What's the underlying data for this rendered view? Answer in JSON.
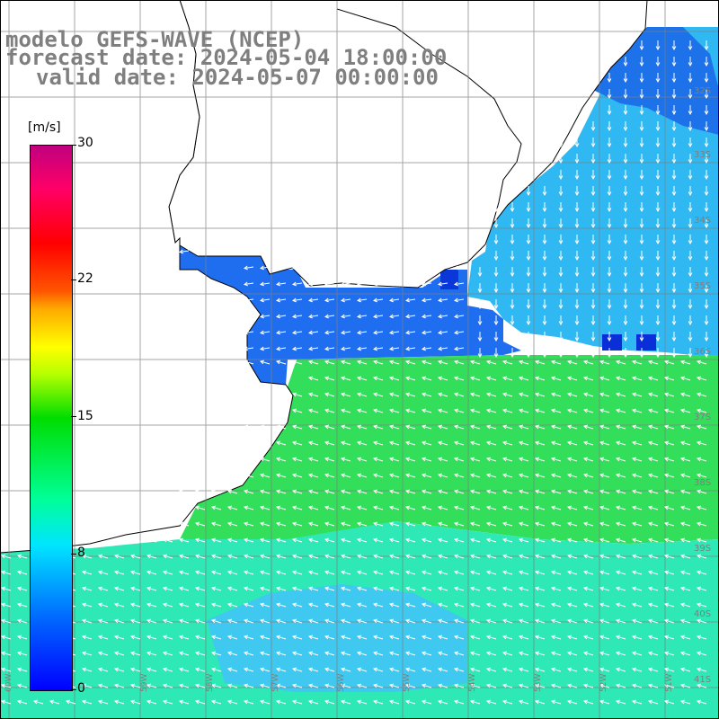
{
  "header": {
    "model": "modelo GEFS-WAVE (NCEP)",
    "forecast": "forecast date: 2024-05-04 18:00:00",
    "valid": "valid date: 2024-05-07 00:00:00"
  },
  "colorbar": {
    "unit": "[m/s]",
    "ticks": [
      "30",
      "22",
      "15",
      "8",
      "0"
    ],
    "tick_values": [
      30,
      22,
      15,
      8,
      0
    ],
    "min": 0,
    "max": 30,
    "colors": [
      "#0000ff",
      "#0066ff",
      "#00e5ff",
      "#00ff99",
      "#00dd00",
      "#b5ff00",
      "#ffff00",
      "#ff5500",
      "#ff0000",
      "#c0007f"
    ]
  },
  "map": {
    "variable": "wind speed and direction",
    "lat_labels": [
      "32S",
      "33S",
      "34S",
      "35S",
      "36S",
      "37S",
      "38S",
      "39S",
      "40S",
      "41S"
    ],
    "lon_labels": [
      "60W",
      "59W",
      "58W",
      "57W",
      "56W",
      "55W",
      "54W",
      "53W",
      "52W",
      "51W",
      "50W"
    ],
    "land_color": "#ffffff",
    "coast_color": "#000000",
    "grid_color": "#7f7f7f"
  }
}
